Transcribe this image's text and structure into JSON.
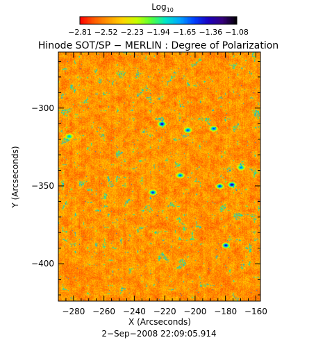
{
  "chart_data": {
    "type": "heatmap",
    "title": "Hinode SOT/SP − MERLIN : Degree of Polarization",
    "xlabel": "X (Arcseconds)",
    "ylabel": "Y (Arcseconds)",
    "date": "2−Sep−2008 22:09:05.914",
    "colorbar": {
      "title": "Log",
      "title_sub": "10",
      "range": [
        -2.81,
        -1.08
      ],
      "ticks": [
        "−2.81",
        "−2.52",
        "−2.23",
        "−1.94",
        "−1.65",
        "−1.36",
        "−1.08"
      ],
      "colormap": [
        "#ff0000",
        "#ff5a00",
        "#ff9a00",
        "#ffd400",
        "#c6ff00",
        "#55ff3a",
        "#00e6c8",
        "#00a6ff",
        "#0040ff",
        "#1a00c0",
        "#36007a",
        "#000000"
      ]
    },
    "x_ticks": [
      -280,
      -260,
      -240,
      -220,
      -200,
      -180,
      -160
    ],
    "x_tick_labels": [
      "−280",
      "−260",
      "−240",
      "−220",
      "−200",
      "−180",
      "−160"
    ],
    "y_ticks": [
      -300,
      -350,
      -400
    ],
    "y_tick_labels": [
      "−300",
      "−350",
      "−400"
    ],
    "xlim": [
      -290,
      -157
    ],
    "ylim": [
      -424,
      -264
    ],
    "image_value_range": [
      -2.81,
      -1.08
    ],
    "image_typical_range": [
      -2.7,
      -2.3
    ],
    "strong_features": [
      {
        "x": -222,
        "y": -310,
        "value": -1.35
      },
      {
        "x": -176,
        "y": -349,
        "value": -1.3
      },
      {
        "x": -184,
        "y": -350,
        "value": -1.45
      },
      {
        "x": -180,
        "y": -388,
        "value": -1.35
      },
      {
        "x": -205,
        "y": -314,
        "value": -1.5
      },
      {
        "x": -188,
        "y": -313,
        "value": -1.5
      },
      {
        "x": -228,
        "y": -354,
        "value": -1.45
      },
      {
        "x": -210,
        "y": -343,
        "value": -1.55
      },
      {
        "x": -283,
        "y": -318,
        "value": -1.7
      },
      {
        "x": -170,
        "y": -338,
        "value": -1.6
      }
    ]
  }
}
